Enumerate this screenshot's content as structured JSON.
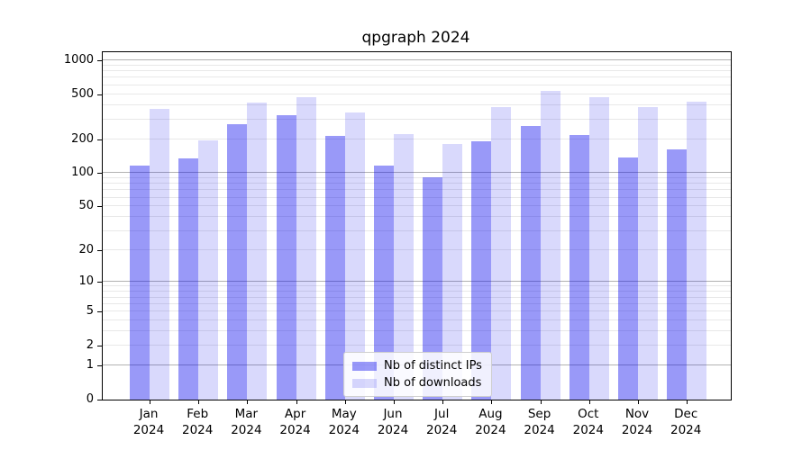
{
  "title": "qpgraph 2024",
  "chart_data": {
    "type": "bar",
    "title": "qpgraph 2024",
    "categories": [
      "Jan",
      "Feb",
      "Mar",
      "Apr",
      "May",
      "Jun",
      "Jul",
      "Aug",
      "Sep",
      "Oct",
      "Nov",
      "Dec"
    ],
    "year_label": "2024",
    "series": [
      {
        "name": "Nb of distinct IPs",
        "color": "rgba(0,0,238,0.40)",
        "color_hex_on_white": "#9999f7",
        "values": [
          116,
          135,
          270,
          325,
          212,
          117,
          91,
          193,
          264,
          219,
          137,
          161
        ]
      },
      {
        "name": "Nb of downloads",
        "color": "rgba(0,0,238,0.15)",
        "color_hex_on_white": "#d9d9fc",
        "values": [
          372,
          195,
          425,
          468,
          345,
          223,
          180,
          383,
          535,
          472,
          385,
          430
        ]
      }
    ],
    "xlabel": "",
    "ylabel": "",
    "yscale": "log(1+x)",
    "ytick_values": [
      0,
      1,
      2,
      5,
      10,
      20,
      50,
      100,
      200,
      500,
      1000
    ],
    "ytick_labels": [
      "0",
      "1",
      "2",
      "5",
      "10",
      "20",
      "50",
      "100",
      "200",
      "500",
      "1000"
    ],
    "ylim": [
      0,
      1180
    ],
    "grid": "horizontal",
    "grid_major": [
      1,
      10,
      100,
      1000
    ],
    "grid_minor": [
      2,
      3,
      4,
      5,
      6,
      7,
      8,
      9,
      20,
      30,
      40,
      50,
      60,
      70,
      80,
      90,
      200,
      300,
      400,
      500,
      600,
      700,
      800,
      900
    ],
    "grid_major_color": "#b2b2b2",
    "grid_minor_color": "#e8e8e8",
    "axes_frame_color": "#000000",
    "background_color": "#ffffff",
    "legend": {
      "position": "lower center",
      "entries": [
        "Nb of distinct IPs",
        "Nb of downloads"
      ]
    }
  }
}
